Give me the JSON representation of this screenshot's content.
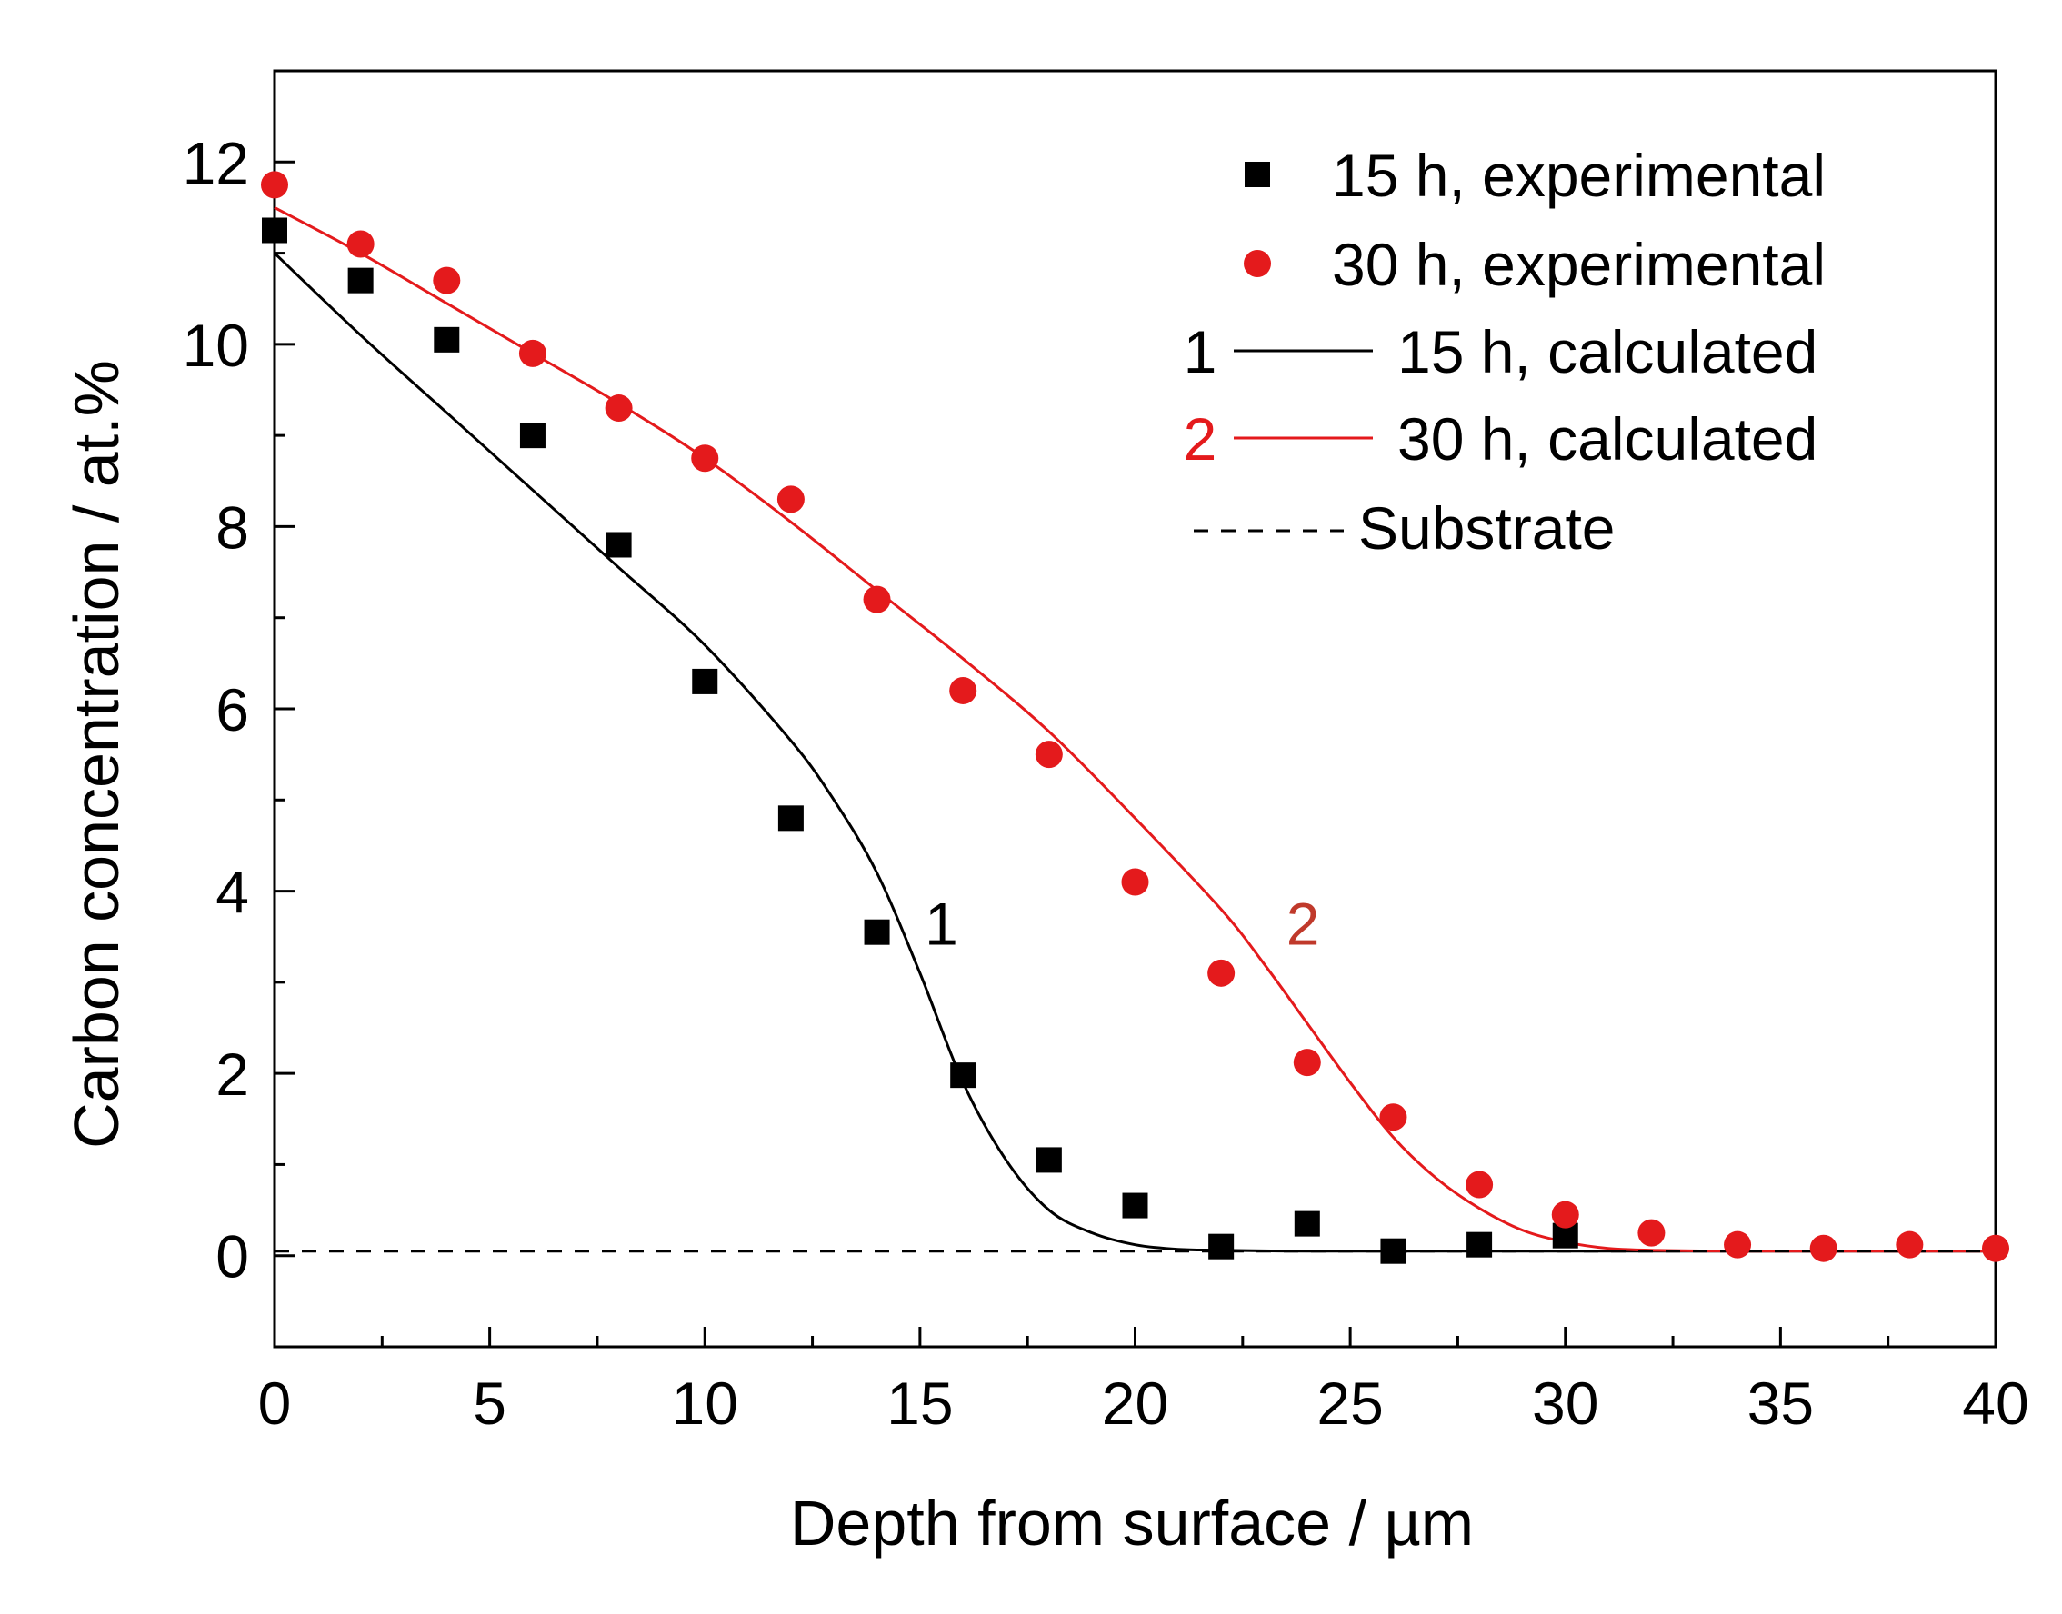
{
  "chart_data": {
    "type": "scatter",
    "xlabel": "Depth from surface / µm",
    "ylabel": "Carbon concentration / at.%",
    "xlim": [
      0,
      40
    ],
    "ylim": [
      -1,
      13
    ],
    "xticks": [
      0,
      5,
      10,
      15,
      20,
      25,
      30,
      35,
      40
    ],
    "yticks": [
      0,
      2,
      4,
      6,
      8,
      10,
      12
    ],
    "xtick_labels": [
      "0",
      "5",
      "10",
      "15",
      "20",
      "25",
      "30",
      "35",
      "40"
    ],
    "ytick_labels": [
      "0",
      "2",
      "4",
      "6",
      "8",
      "10",
      "12"
    ],
    "grid": false,
    "legend_position": "top-right",
    "colors": {
      "black": "#000000",
      "red": "#e41a1c",
      "dark_red": "#c0392b"
    },
    "series": [
      {
        "name": "15 h, experimental",
        "kind": "scatter",
        "marker": "square",
        "color": "#000000",
        "x": [
          0,
          2,
          4,
          6,
          8,
          10,
          12,
          14,
          16,
          18,
          20,
          22,
          24,
          26,
          28,
          30
        ],
        "y": [
          11.25,
          10.7,
          10.05,
          9.0,
          7.8,
          6.3,
          4.8,
          3.55,
          1.98,
          1.05,
          0.55,
          0.1,
          0.35,
          0.05,
          0.12,
          0.22
        ]
      },
      {
        "name": "30 h, experimental",
        "kind": "scatter",
        "marker": "circle",
        "color": "#e41a1c",
        "x": [
          0,
          2,
          4,
          6,
          8,
          10,
          12,
          14,
          16,
          18,
          20,
          22,
          24,
          26,
          28,
          30,
          32,
          34,
          36,
          38,
          40
        ],
        "y": [
          11.75,
          11.1,
          10.7,
          9.9,
          9.3,
          8.75,
          8.3,
          7.2,
          6.2,
          5.5,
          4.1,
          3.1,
          2.12,
          1.52,
          0.78,
          0.45,
          0.25,
          0.12,
          0.08,
          0.12,
          0.08
        ]
      },
      {
        "name": "15 h, calculated",
        "label": "1",
        "kind": "line",
        "color": "#000000",
        "x": [
          0,
          2,
          4,
          6,
          8,
          10,
          12,
          13,
          14,
          15,
          16,
          17,
          18,
          19,
          20,
          21,
          22,
          24,
          30,
          40
        ],
        "y": [
          11.0,
          10.1,
          9.25,
          8.4,
          7.55,
          6.7,
          5.65,
          5.0,
          4.2,
          3.1,
          1.9,
          1.05,
          0.5,
          0.25,
          0.12,
          0.07,
          0.06,
          0.05,
          0.05,
          0.05
        ]
      },
      {
        "name": "30 h, calculated",
        "label": "2",
        "kind": "line",
        "color": "#e41a1c",
        "x": [
          0,
          2,
          4,
          6,
          8,
          10,
          12,
          14,
          16,
          18,
          20,
          22,
          23,
          24,
          25,
          26,
          27,
          28,
          29,
          30,
          31,
          32,
          34,
          40
        ],
        "y": [
          11.5,
          11.0,
          10.45,
          9.9,
          9.35,
          8.75,
          8.05,
          7.3,
          6.55,
          5.75,
          4.8,
          3.8,
          3.2,
          2.55,
          1.9,
          1.3,
          0.85,
          0.52,
          0.28,
          0.15,
          0.08,
          0.06,
          0.05,
          0.05
        ]
      },
      {
        "name": "Substrate",
        "kind": "line",
        "dash": "dashed",
        "color": "#000000",
        "x": [
          0,
          40
        ],
        "y": [
          0.05,
          0.05
        ]
      }
    ],
    "curve_annotations": [
      {
        "text": "1",
        "x": 15.5,
        "y": 3.65,
        "color": "#000000"
      },
      {
        "text": "2",
        "x": 23.9,
        "y": 3.65,
        "color": "#c0392b"
      }
    ],
    "legend": [
      {
        "label": "15 h, experimental",
        "series": 0
      },
      {
        "label": "30 h, experimental",
        "series": 1
      },
      {
        "label": "15 h, calculated",
        "series": 2,
        "number": "1"
      },
      {
        "label": "30 h, calculated",
        "series": 3,
        "number": "2"
      },
      {
        "label": "Substrate",
        "series": 4
      }
    ]
  }
}
